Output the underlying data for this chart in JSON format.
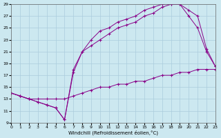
{
  "bg_color": "#cce8f0",
  "grid_color": "#aaccdd",
  "line_color": "#880088",
  "xlabel": "Windchill (Refroidissement éolien,°C)",
  "xmin": 0,
  "xmax": 23,
  "ymin": 9,
  "ymax": 29,
  "yticks": [
    9,
    11,
    13,
    15,
    17,
    19,
    21,
    23,
    25,
    27,
    29
  ],
  "xticks": [
    0,
    1,
    2,
    3,
    4,
    5,
    6,
    7,
    8,
    9,
    10,
    11,
    12,
    13,
    14,
    15,
    16,
    17,
    18,
    19,
    20,
    21,
    22,
    23
  ],
  "line1_x": [
    0,
    1,
    2,
    3,
    4,
    5,
    6,
    7,
    8,
    9,
    10,
    11,
    12,
    13,
    14,
    15,
    16,
    17,
    18,
    19,
    20,
    21,
    22,
    23
  ],
  "line1_y": [
    14,
    13.5,
    13.0,
    13.0,
    13.0,
    13.0,
    13.0,
    13.5,
    14.0,
    14.5,
    15.0,
    15.0,
    15.5,
    15.5,
    16.0,
    16.0,
    16.5,
    17.0,
    17.0,
    17.5,
    17.5,
    18.0,
    18.0,
    18.0
  ],
  "line2_x": [
    0,
    1,
    2,
    3,
    4,
    5,
    6,
    7,
    8,
    9,
    10,
    11,
    12,
    13,
    14,
    15,
    16,
    17,
    18,
    19,
    20,
    21,
    22,
    23
  ],
  "line2_y": [
    14,
    13.5,
    13.0,
    12.5,
    12.0,
    11.5,
    9.5,
    18.0,
    21.0,
    23.0,
    24.5,
    25.0,
    26.0,
    26.5,
    27.0,
    28.0,
    28.5,
    29.0,
    29.0,
    29.0,
    27.0,
    25.0,
    21.0,
    18.5
  ],
  "line3_x": [
    0,
    1,
    2,
    3,
    4,
    5,
    6,
    7,
    8,
    9,
    10,
    11,
    12,
    13,
    14,
    15,
    16,
    17,
    18,
    19,
    20,
    21,
    22,
    23
  ],
  "line3_y": [
    14,
    13.5,
    13.0,
    12.5,
    12.0,
    11.5,
    9.5,
    17.5,
    21.0,
    22.0,
    23.0,
    24.0,
    25.0,
    25.5,
    26.0,
    27.0,
    27.5,
    28.5,
    29.0,
    29.0,
    28.0,
    27.0,
    21.5,
    18.5
  ]
}
